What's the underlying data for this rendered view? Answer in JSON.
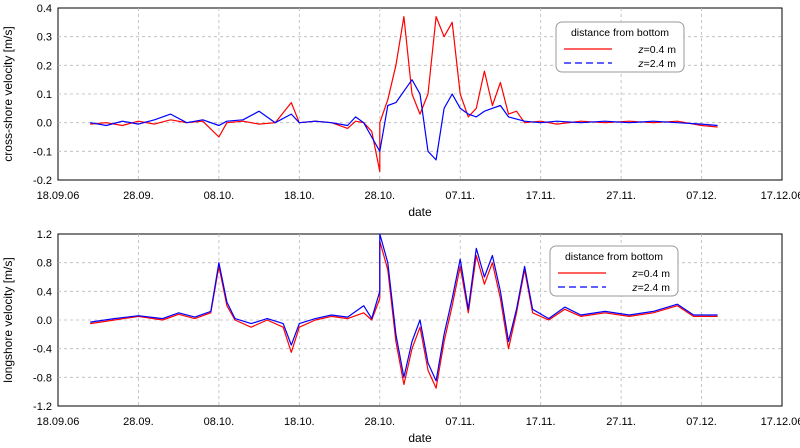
{
  "chart_data": [
    {
      "type": "line",
      "xlabel": "date",
      "ylabel": "cross-shore velocity [m/s]",
      "ylim": [
        -0.2,
        0.4
      ],
      "yticks": [
        "-0.2",
        "-0.1",
        "0.0",
        "0.1",
        "0.2",
        "0.3",
        "0.4"
      ],
      "xlim_dates": [
        "2006-09-18",
        "2006-12-17"
      ],
      "xticks": [
        "18.09.06",
        "28.09.",
        "08.10.",
        "18.10.",
        "28.10.",
        "07.11.",
        "17.11.",
        "27.11.",
        "07.12.",
        "17.12.06"
      ],
      "grid": true,
      "legend": {
        "title": "distance from bottom",
        "position": "top-right"
      },
      "series": [
        {
          "name": "z=0.4 m",
          "label_var": "z",
          "label_rest": "=0.4 m",
          "color": "#ff0000",
          "dash": "solid",
          "points": [
            [
              "2006-09-22",
              -0.005
            ],
            [
              "2006-09-24",
              0.0
            ],
            [
              "2006-09-26",
              -0.01
            ],
            [
              "2006-09-28",
              0.005
            ],
            [
              "2006-09-30",
              -0.005
            ],
            [
              "2006-10-02",
              0.01
            ],
            [
              "2006-10-04",
              0.0
            ],
            [
              "2006-10-06",
              0.005
            ],
            [
              "2006-10-08",
              -0.05
            ],
            [
              "2006-10-09",
              0.0
            ],
            [
              "2006-10-11",
              0.005
            ],
            [
              "2006-10-13",
              -0.005
            ],
            [
              "2006-10-15",
              0.0
            ],
            [
              "2006-10-17",
              0.07
            ],
            [
              "2006-10-18",
              0.0
            ],
            [
              "2006-10-20",
              0.005
            ],
            [
              "2006-10-22",
              0.0
            ],
            [
              "2006-10-24",
              -0.02
            ],
            [
              "2006-10-25",
              0.005
            ],
            [
              "2006-10-26",
              0.0
            ],
            [
              "2006-10-27",
              -0.03
            ],
            [
              "2006-10-28",
              -0.17
            ],
            [
              "2006-10-28",
              0.0
            ],
            [
              "2006-10-29",
              0.08
            ],
            [
              "2006-10-30",
              0.2
            ],
            [
              "2006-10-31",
              0.37
            ],
            [
              "2006-11-01",
              0.1
            ],
            [
              "2006-11-02",
              0.03
            ],
            [
              "2006-11-03",
              0.1
            ],
            [
              "2006-11-04",
              0.37
            ],
            [
              "2006-11-05",
              0.3
            ],
            [
              "2006-11-06",
              0.35
            ],
            [
              "2006-11-07",
              0.1
            ],
            [
              "2006-11-08",
              0.02
            ],
            [
              "2006-11-09",
              0.05
            ],
            [
              "2006-11-10",
              0.18
            ],
            [
              "2006-11-11",
              0.06
            ],
            [
              "2006-11-12",
              0.14
            ],
            [
              "2006-11-13",
              0.03
            ],
            [
              "2006-11-14",
              0.04
            ],
            [
              "2006-11-15",
              0.0
            ],
            [
              "2006-11-17",
              0.005
            ],
            [
              "2006-11-19",
              -0.005
            ],
            [
              "2006-11-22",
              0.005
            ],
            [
              "2006-11-25",
              0.0
            ],
            [
              "2006-11-28",
              0.005
            ],
            [
              "2006-12-01",
              0.0
            ],
            [
              "2006-12-04",
              0.005
            ],
            [
              "2006-12-07",
              -0.01
            ],
            [
              "2006-12-09",
              -0.015
            ]
          ]
        },
        {
          "name": "z=2.4 m",
          "label_var": "z",
          "label_rest": "=2.4 m",
          "color": "#0000ff",
          "dash": "dashed",
          "points": [
            [
              "2006-09-22",
              0.0
            ],
            [
              "2006-09-24",
              -0.01
            ],
            [
              "2006-09-26",
              0.005
            ],
            [
              "2006-09-28",
              -0.005
            ],
            [
              "2006-09-30",
              0.01
            ],
            [
              "2006-10-02",
              0.03
            ],
            [
              "2006-10-04",
              0.0
            ],
            [
              "2006-10-06",
              0.01
            ],
            [
              "2006-10-08",
              -0.01
            ],
            [
              "2006-10-09",
              0.005
            ],
            [
              "2006-10-11",
              0.01
            ],
            [
              "2006-10-13",
              0.04
            ],
            [
              "2006-10-15",
              0.0
            ],
            [
              "2006-10-17",
              0.03
            ],
            [
              "2006-10-18",
              0.0
            ],
            [
              "2006-10-20",
              0.005
            ],
            [
              "2006-10-22",
              0.0
            ],
            [
              "2006-10-24",
              -0.01
            ],
            [
              "2006-10-25",
              0.02
            ],
            [
              "2006-10-26",
              0.0
            ],
            [
              "2006-10-27",
              -0.05
            ],
            [
              "2006-10-28",
              -0.1
            ],
            [
              "2006-10-29",
              0.06
            ],
            [
              "2006-10-30",
              0.07
            ],
            [
              "2006-11-01",
              0.15
            ],
            [
              "2006-11-02",
              0.1
            ],
            [
              "2006-11-03",
              -0.1
            ],
            [
              "2006-11-04",
              -0.13
            ],
            [
              "2006-11-05",
              0.05
            ],
            [
              "2006-11-06",
              0.1
            ],
            [
              "2006-11-07",
              0.05
            ],
            [
              "2006-11-08",
              0.03
            ],
            [
              "2006-11-09",
              0.02
            ],
            [
              "2006-11-10",
              0.04
            ],
            [
              "2006-11-11",
              0.05
            ],
            [
              "2006-11-12",
              0.06
            ],
            [
              "2006-11-13",
              0.02
            ],
            [
              "2006-11-15",
              0.005
            ],
            [
              "2006-11-17",
              0.0
            ],
            [
              "2006-11-19",
              0.005
            ],
            [
              "2006-11-22",
              0.0
            ],
            [
              "2006-11-25",
              0.005
            ],
            [
              "2006-11-28",
              0.0
            ],
            [
              "2006-12-01",
              0.005
            ],
            [
              "2006-12-04",
              0.0
            ],
            [
              "2006-12-07",
              -0.005
            ],
            [
              "2006-12-09",
              -0.01
            ]
          ]
        }
      ]
    },
    {
      "type": "line",
      "xlabel": "date",
      "ylabel": "longshore velocity [m/s]",
      "ylim": [
        -1.2,
        1.2
      ],
      "yticks": [
        "-1.2",
        "-0.8",
        "-0.4",
        "0.0",
        "0.4",
        "0.8",
        "1.2"
      ],
      "xlim_dates": [
        "2006-09-18",
        "2006-12-17"
      ],
      "xticks": [
        "18.09.06",
        "28.09.",
        "08.10.",
        "18.10.",
        "28.10.",
        "07.11.",
        "17.11.",
        "27.11.",
        "07.12.",
        "17.12.06"
      ],
      "grid": true,
      "legend": {
        "title": "distance from bottom",
        "position": "top-right"
      },
      "series": [
        {
          "name": "z=0.4 m",
          "label_var": "z",
          "label_rest": "=0.4 m",
          "color": "#ff0000",
          "dash": "solid",
          "points": [
            [
              "2006-09-22",
              -0.05
            ],
            [
              "2006-09-25",
              0.0
            ],
            [
              "2006-09-28",
              0.05
            ],
            [
              "2006-10-01",
              0.0
            ],
            [
              "2006-10-03",
              0.08
            ],
            [
              "2006-10-05",
              0.02
            ],
            [
              "2006-10-07",
              0.1
            ],
            [
              "2006-10-08",
              0.75
            ],
            [
              "2006-10-09",
              0.2
            ],
            [
              "2006-10-10",
              0.0
            ],
            [
              "2006-10-12",
              -0.1
            ],
            [
              "2006-10-14",
              0.0
            ],
            [
              "2006-10-16",
              -0.1
            ],
            [
              "2006-10-17",
              -0.45
            ],
            [
              "2006-10-18",
              -0.1
            ],
            [
              "2006-10-20",
              0.0
            ],
            [
              "2006-10-22",
              0.05
            ],
            [
              "2006-10-24",
              0.02
            ],
            [
              "2006-10-26",
              0.1
            ],
            [
              "2006-10-27",
              0.0
            ],
            [
              "2006-10-28",
              0.3
            ],
            [
              "2006-10-28",
              1.1
            ],
            [
              "2006-10-29",
              0.7
            ],
            [
              "2006-10-30",
              -0.3
            ],
            [
              "2006-10-31",
              -0.9
            ],
            [
              "2006-11-01",
              -0.4
            ],
            [
              "2006-11-02",
              -0.1
            ],
            [
              "2006-11-03",
              -0.7
            ],
            [
              "2006-11-04",
              -0.95
            ],
            [
              "2006-11-05",
              -0.3
            ],
            [
              "2006-11-06",
              0.2
            ],
            [
              "2006-11-07",
              0.75
            ],
            [
              "2006-11-08",
              0.1
            ],
            [
              "2006-11-09",
              0.9
            ],
            [
              "2006-11-10",
              0.5
            ],
            [
              "2006-11-11",
              0.8
            ],
            [
              "2006-11-12",
              0.3
            ],
            [
              "2006-11-13",
              -0.4
            ],
            [
              "2006-11-14",
              0.1
            ],
            [
              "2006-11-15",
              0.7
            ],
            [
              "2006-11-16",
              0.1
            ],
            [
              "2006-11-18",
              0.0
            ],
            [
              "2006-11-20",
              0.15
            ],
            [
              "2006-11-22",
              0.05
            ],
            [
              "2006-11-25",
              0.1
            ],
            [
              "2006-11-28",
              0.05
            ],
            [
              "2006-12-01",
              0.1
            ],
            [
              "2006-12-04",
              0.2
            ],
            [
              "2006-12-06",
              0.05
            ],
            [
              "2006-12-09",
              0.05
            ]
          ]
        },
        {
          "name": "z=2.4 m",
          "label_var": "z",
          "label_rest": "=2.4 m",
          "color": "#0000ff",
          "dash": "dashed",
          "points": [
            [
              "2006-09-22",
              -0.03
            ],
            [
              "2006-09-25",
              0.02
            ],
            [
              "2006-09-28",
              0.06
            ],
            [
              "2006-10-01",
              0.02
            ],
            [
              "2006-10-03",
              0.1
            ],
            [
              "2006-10-05",
              0.04
            ],
            [
              "2006-10-07",
              0.12
            ],
            [
              "2006-10-08",
              0.8
            ],
            [
              "2006-10-09",
              0.25
            ],
            [
              "2006-10-10",
              0.02
            ],
            [
              "2006-10-12",
              -0.05
            ],
            [
              "2006-10-14",
              0.02
            ],
            [
              "2006-10-16",
              -0.05
            ],
            [
              "2006-10-17",
              -0.35
            ],
            [
              "2006-10-18",
              -0.05
            ],
            [
              "2006-10-20",
              0.02
            ],
            [
              "2006-10-22",
              0.07
            ],
            [
              "2006-10-24",
              0.04
            ],
            [
              "2006-10-26",
              0.2
            ],
            [
              "2006-10-27",
              0.02
            ],
            [
              "2006-10-28",
              0.4
            ],
            [
              "2006-10-28",
              1.2
            ],
            [
              "2006-10-29",
              0.8
            ],
            [
              "2006-10-30",
              -0.2
            ],
            [
              "2006-10-31",
              -0.8
            ],
            [
              "2006-11-01",
              -0.3
            ],
            [
              "2006-11-02",
              0.0
            ],
            [
              "2006-11-03",
              -0.6
            ],
            [
              "2006-11-04",
              -0.85
            ],
            [
              "2006-11-05",
              -0.2
            ],
            [
              "2006-11-06",
              0.3
            ],
            [
              "2006-11-07",
              0.85
            ],
            [
              "2006-11-08",
              0.15
            ],
            [
              "2006-11-09",
              1.0
            ],
            [
              "2006-11-10",
              0.6
            ],
            [
              "2006-11-11",
              0.9
            ],
            [
              "2006-11-12",
              0.4
            ],
            [
              "2006-11-13",
              -0.3
            ],
            [
              "2006-11-14",
              0.15
            ],
            [
              "2006-11-15",
              0.75
            ],
            [
              "2006-11-16",
              0.15
            ],
            [
              "2006-11-18",
              0.02
            ],
            [
              "2006-11-20",
              0.18
            ],
            [
              "2006-11-22",
              0.07
            ],
            [
              "2006-11-25",
              0.12
            ],
            [
              "2006-11-28",
              0.07
            ],
            [
              "2006-12-01",
              0.12
            ],
            [
              "2006-12-04",
              0.22
            ],
            [
              "2006-12-06",
              0.07
            ],
            [
              "2006-12-09",
              0.07
            ]
          ]
        }
      ]
    }
  ]
}
